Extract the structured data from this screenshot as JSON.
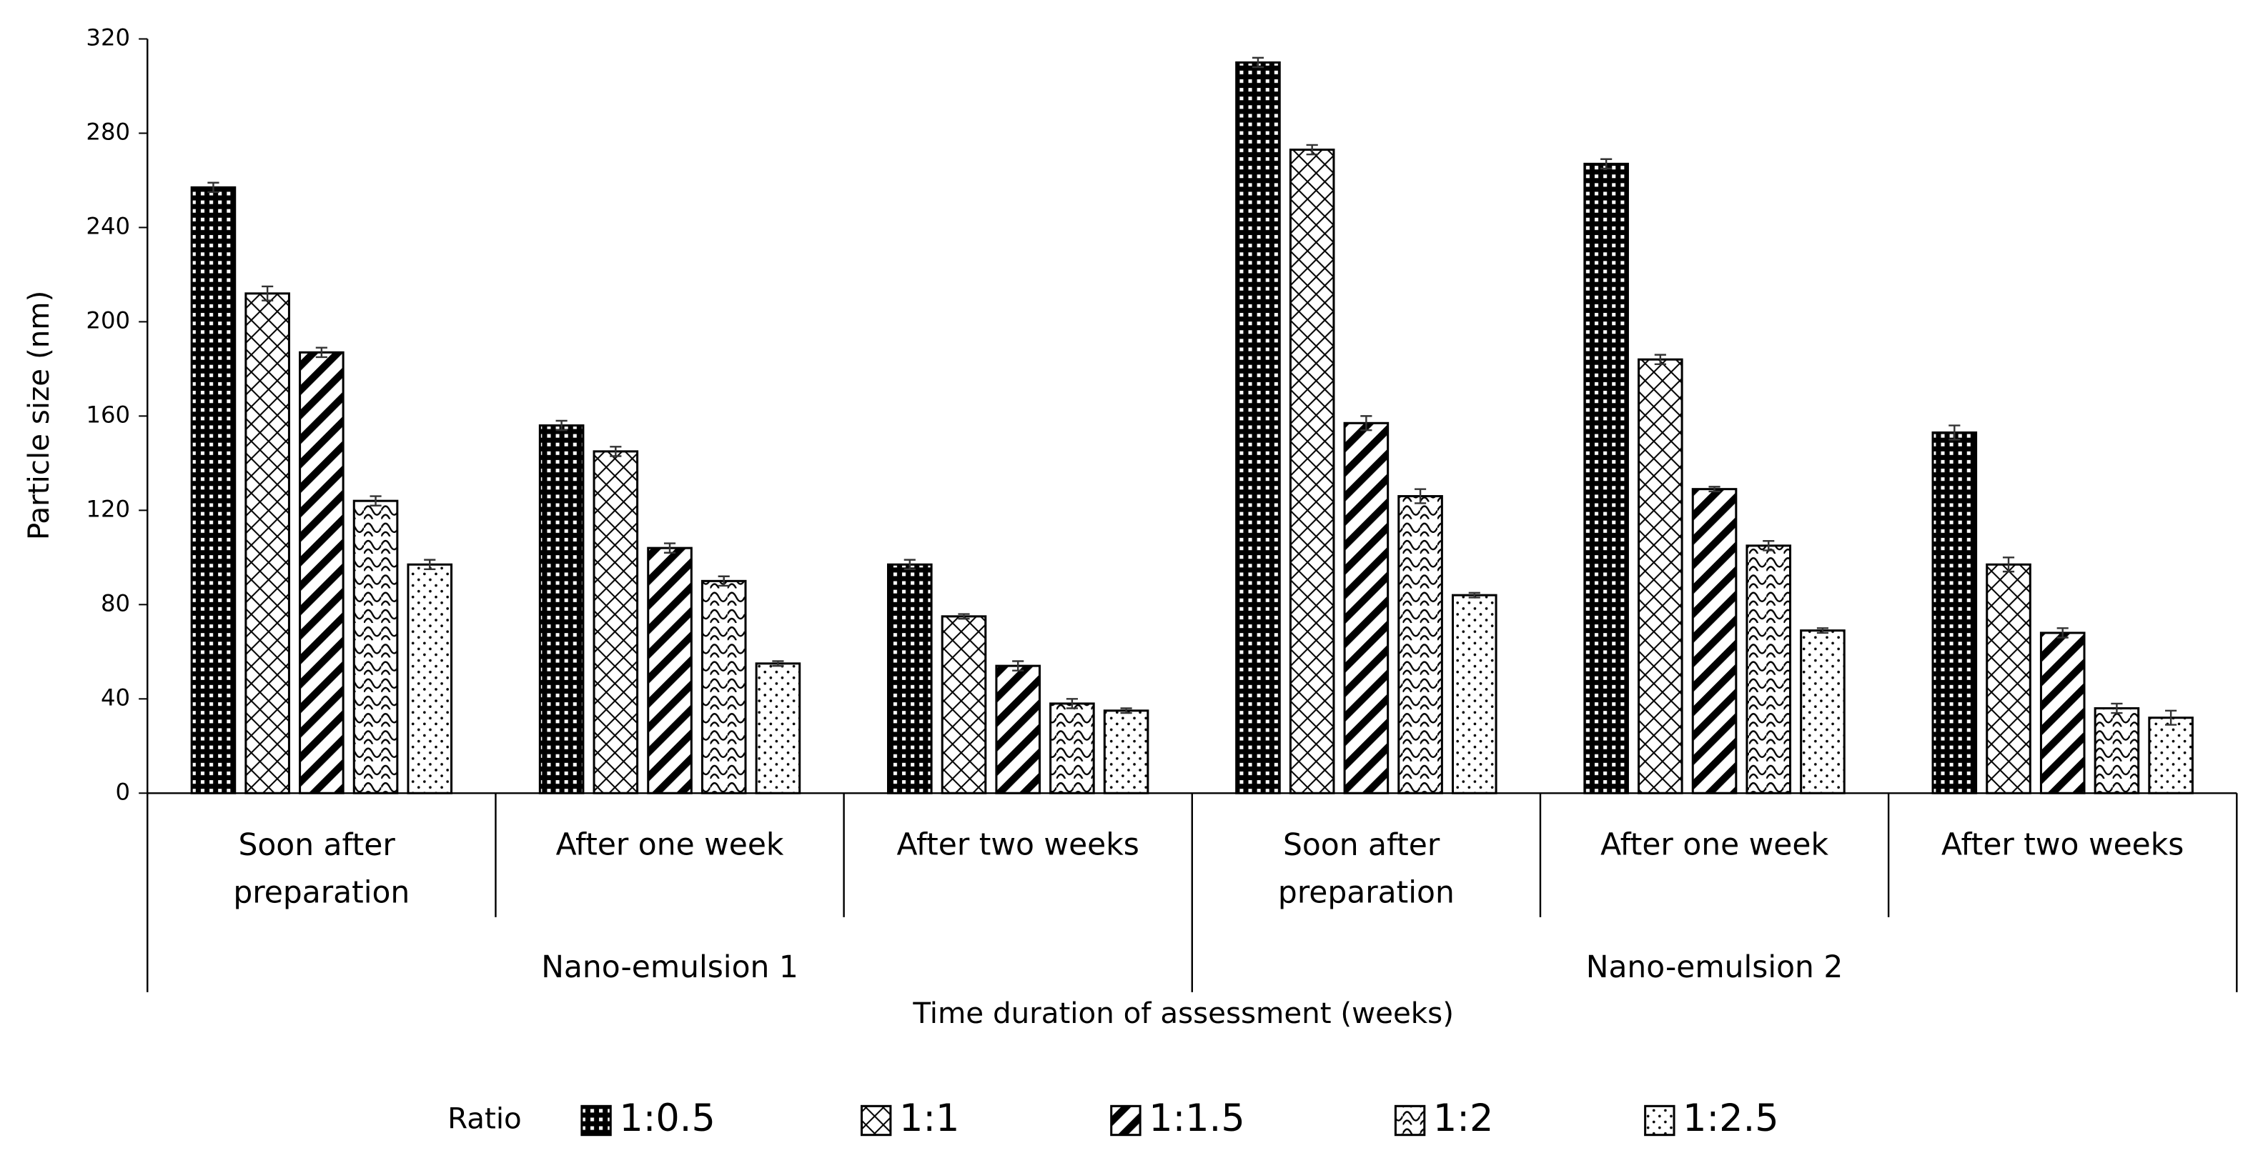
{
  "chart_data": {
    "type": "bar",
    "y_label": "Particle size (nm)",
    "x_label": "Time duration of assessment (weeks)",
    "legend_title": "Ratio",
    "categories": [
      "Soon after preparation",
      "After one week",
      "After two weeks",
      "Soon after preparation",
      "After one week",
      "After two weeks"
    ],
    "groups": [
      {
        "label": "Nano-emulsion 1",
        "size": 3
      },
      {
        "label": "Nano-emulsion 2",
        "size": 3
      }
    ],
    "series": [
      {
        "name": "1:0.5",
        "pattern": "dots",
        "color": "#000000",
        "values": [
          257,
          156,
          97,
          310,
          267,
          153
        ],
        "errors": [
          2,
          2,
          2,
          2,
          2,
          3
        ]
      },
      {
        "name": "1:1",
        "pattern": "cross",
        "color": "#000000",
        "values": [
          212,
          145,
          75,
          273,
          184,
          97
        ],
        "errors": [
          3,
          2,
          1,
          2,
          2,
          3
        ]
      },
      {
        "name": "1:1.5",
        "pattern": "stripes",
        "color": "#000000",
        "values": [
          187,
          104,
          54,
          157,
          129,
          68
        ],
        "errors": [
          2,
          2,
          2,
          3,
          1,
          2
        ]
      },
      {
        "name": "1:2",
        "pattern": "waves",
        "color": "#000000",
        "values": [
          124,
          90,
          38,
          126,
          105,
          36
        ],
        "errors": [
          2,
          2,
          2,
          3,
          2,
          2
        ]
      },
      {
        "name": "1:2.5",
        "pattern": "sparse",
        "color": "#000000",
        "values": [
          97,
          55,
          35,
          84,
          69,
          32
        ],
        "errors": [
          2,
          1,
          1,
          1,
          1,
          3
        ]
      }
    ],
    "ylim": [
      0,
      320
    ],
    "yticks": [
      0,
      40,
      80,
      120,
      160,
      200,
      240,
      280,
      320
    ],
    "grid": false
  }
}
